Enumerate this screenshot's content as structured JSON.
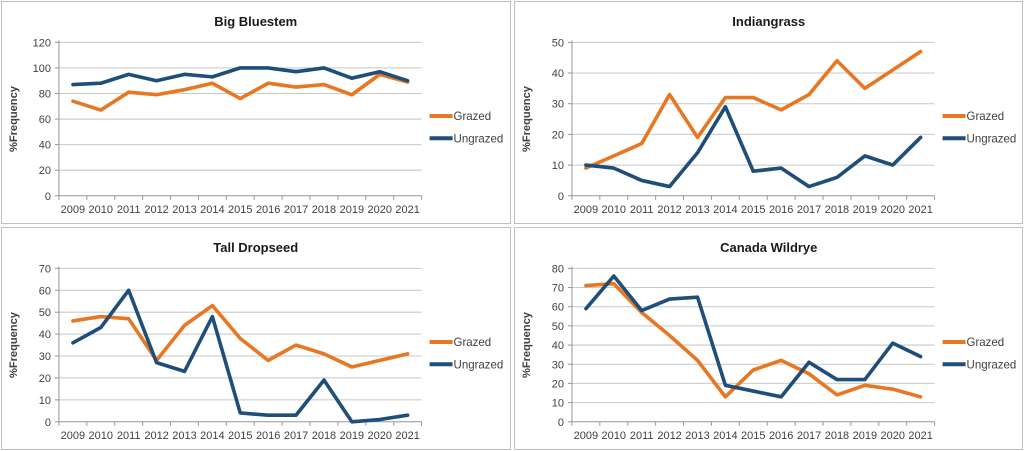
{
  "legend": {
    "grazed": "Grazed",
    "ungrazed": "Ungrazed"
  },
  "colors": {
    "grazed": "#E87722",
    "ungrazed": "#1F4E79",
    "gridline": "#C8C8C8",
    "axis": "#969696",
    "text": "#404040",
    "title": "#1a1a1a",
    "panel_border": "#BFBFBF",
    "background": "#FFFFFF"
  },
  "ylabel": "%Frequency",
  "chart_data": [
    {
      "type": "line",
      "title": "Big Bluestem",
      "xlabel": "",
      "ylabel": "%Frequency",
      "ylim": [
        0,
        120
      ],
      "ystep": 20,
      "grid": true,
      "legend_position": "right",
      "categories": [
        "2009",
        "2010",
        "2011",
        "2012",
        "2013",
        "2014",
        "2015",
        "2016",
        "2017",
        "2018",
        "2019",
        "2020",
        "2021"
      ],
      "series": [
        {
          "name": "Grazed",
          "values": [
            74,
            67,
            81,
            79,
            83,
            88,
            76,
            88,
            85,
            87,
            79,
            95,
            89
          ]
        },
        {
          "name": "Ungrazed",
          "values": [
            87,
            88,
            95,
            90,
            95,
            93,
            100,
            100,
            97,
            100,
            92,
            97,
            90
          ]
        }
      ]
    },
    {
      "type": "line",
      "title": "Indiangrass",
      "xlabel": "",
      "ylabel": "%Frequency",
      "ylim": [
        0,
        50
      ],
      "ystep": 10,
      "grid": true,
      "legend_position": "right",
      "categories": [
        "2009",
        "2010",
        "2011",
        "2012",
        "2013",
        "2014",
        "2015",
        "2016",
        "2017",
        "2018",
        "2019",
        "2020",
        "2021"
      ],
      "series": [
        {
          "name": "Grazed",
          "values": [
            9,
            13,
            17,
            33,
            19,
            32,
            32,
            28,
            33,
            44,
            35,
            41,
            47
          ]
        },
        {
          "name": "Ungrazed",
          "values": [
            10,
            9,
            5,
            3,
            14,
            29,
            8,
            9,
            3,
            6,
            13,
            10,
            19
          ]
        }
      ]
    },
    {
      "type": "line",
      "title": "Tall Dropseed",
      "xlabel": "",
      "ylabel": "%Frequency",
      "ylim": [
        0,
        70
      ],
      "ystep": 10,
      "grid": true,
      "legend_position": "right",
      "categories": [
        "2009",
        "2010",
        "2011",
        "2012",
        "2013",
        "2014",
        "2015",
        "2016",
        "2017",
        "2018",
        "2019",
        "2020",
        "2021"
      ],
      "series": [
        {
          "name": "Grazed",
          "values": [
            46,
            48,
            47,
            28,
            44,
            53,
            38,
            28,
            35,
            31,
            25,
            28,
            31
          ]
        },
        {
          "name": "Ungrazed",
          "values": [
            36,
            43,
            60,
            27,
            23,
            48,
            4,
            3,
            3,
            19,
            0,
            1,
            3
          ]
        }
      ]
    },
    {
      "type": "line",
      "title": "Canada Wildrye",
      "xlabel": "",
      "ylabel": "%Frequency",
      "ylim": [
        0,
        80
      ],
      "ystep": 10,
      "grid": true,
      "legend_position": "right",
      "categories": [
        "2009",
        "2010",
        "2011",
        "2012",
        "2013",
        "2014",
        "2015",
        "2016",
        "2017",
        "2018",
        "2019",
        "2020",
        "2021"
      ],
      "series": [
        {
          "name": "Grazed",
          "values": [
            71,
            72,
            57,
            45,
            32,
            13,
            27,
            32,
            25,
            14,
            19,
            17,
            13
          ]
        },
        {
          "name": "Ungrazed",
          "values": [
            59,
            76,
            58,
            64,
            65,
            19,
            16,
            13,
            31,
            22,
            22,
            41,
            34
          ]
        }
      ]
    }
  ]
}
